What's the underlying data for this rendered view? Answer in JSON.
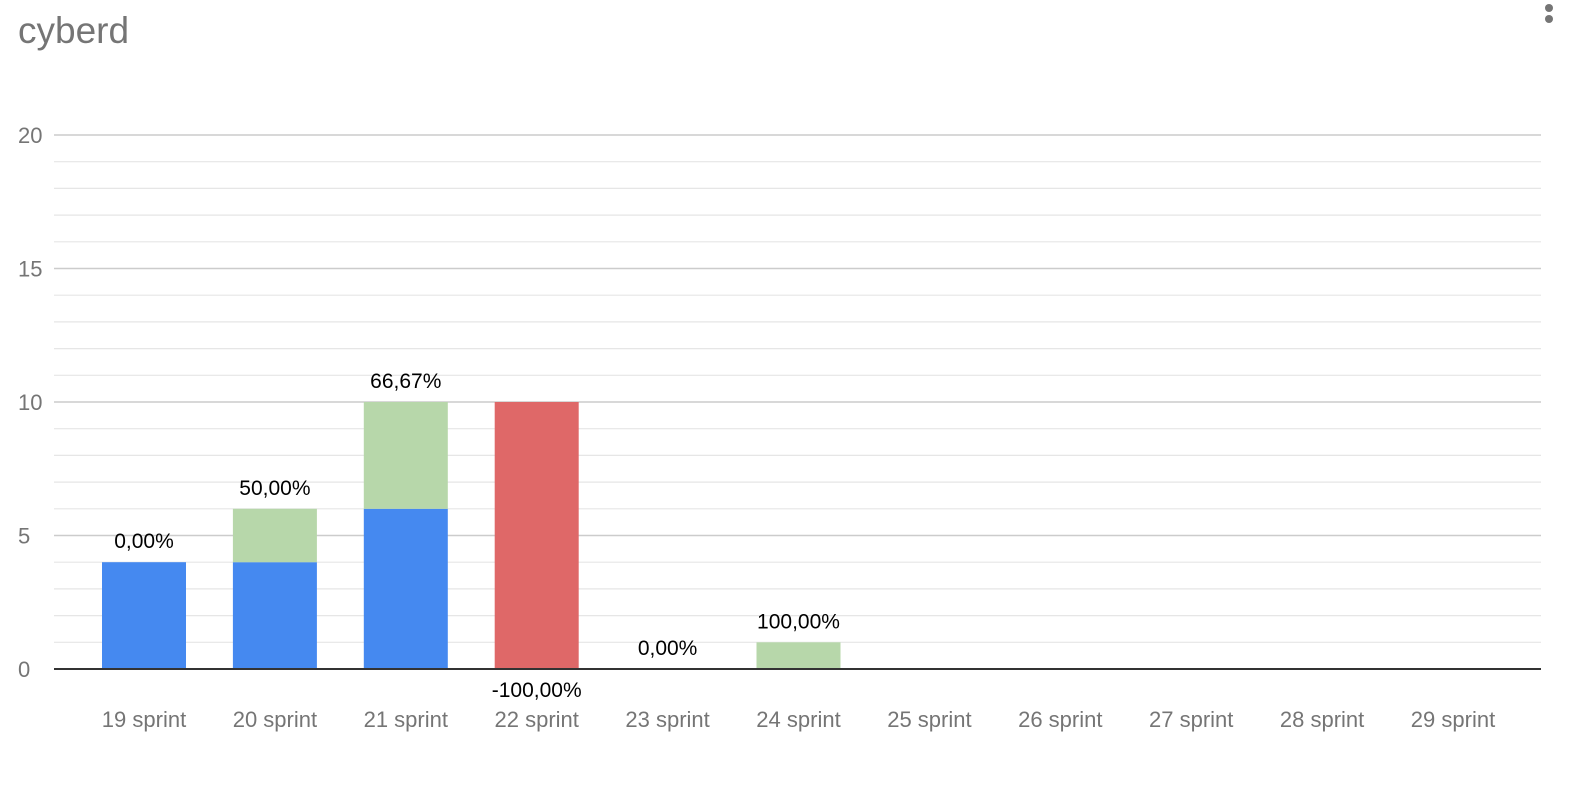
{
  "title": "cyberd",
  "menu": {
    "icon": "more-vert-icon"
  },
  "colors": {
    "base": "#4589f0",
    "increase": "#b7d7aa",
    "decrease": "#df6868",
    "gridMajor": "#cccccc",
    "gridMinor": "#e6e6e6",
    "baseline": "#333333",
    "tickText": "#757575",
    "labelText": "#000000"
  },
  "chart_data": {
    "type": "bar",
    "stacked": true,
    "title": "cyberd",
    "xlabel": "",
    "ylabel": "",
    "categories": [
      "19 sprint",
      "20 sprint",
      "21 sprint",
      "22 sprint",
      "23 sprint",
      "24 sprint",
      "25 sprint",
      "26 sprint",
      "27 sprint",
      "28 sprint",
      "29 sprint"
    ],
    "series": [
      {
        "key": "base",
        "values": [
          4,
          4,
          6,
          0,
          0,
          0,
          null,
          null,
          null,
          null,
          null
        ]
      },
      {
        "key": "increase",
        "values": [
          0,
          2,
          4,
          0,
          0,
          1,
          null,
          null,
          null,
          null,
          null
        ]
      },
      {
        "key": "decrease",
        "values": [
          0,
          0,
          0,
          10,
          0,
          0,
          null,
          null,
          null,
          null,
          null
        ]
      }
    ],
    "data_labels": [
      "0,00%",
      "50,00%",
      "66,67%",
      "-100,00%",
      "0,00%",
      "100,00%",
      null,
      null,
      null,
      null,
      null
    ],
    "ylim": [
      0,
      20
    ],
    "yticks": [
      0,
      5,
      10,
      15,
      20
    ],
    "minor_ticks_per_major": 5,
    "grid": true,
    "legend": "none"
  }
}
